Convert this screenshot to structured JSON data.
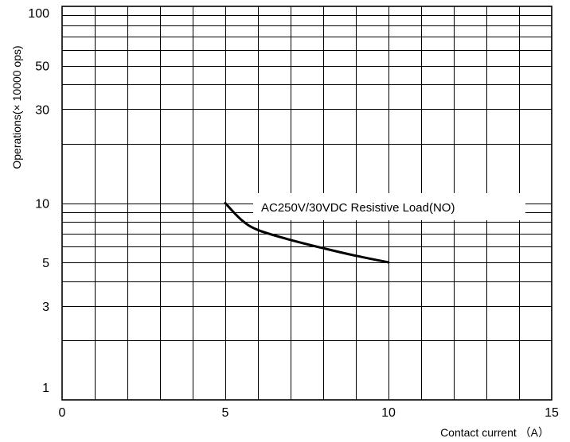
{
  "chart_data": {
    "type": "line",
    "title": "",
    "xlabel": "Contact current （A）",
    "ylabel": "Operations(× 10000 ops)",
    "xlim": [
      0,
      15
    ],
    "ylim": [
      1,
      100
    ],
    "y_scale": "log",
    "grid": true,
    "x_ticks": [
      {
        "value": 0,
        "label": "0"
      },
      {
        "value": 5,
        "label": "5"
      },
      {
        "value": 10,
        "label": "10"
      },
      {
        "value": 15,
        "label": "15"
      }
    ],
    "y_ticks": [
      {
        "value": 1,
        "label": "1"
      },
      {
        "value": 3,
        "label": "3"
      },
      {
        "value": 5,
        "label": "5"
      },
      {
        "value": 10,
        "label": "10"
      },
      {
        "value": 30,
        "label": "30"
      },
      {
        "value": 50,
        "label": "50"
      },
      {
        "value": 100,
        "label": "100"
      }
    ],
    "annotation": "AC250V/30VDC  Resistive Load(NO)",
    "series": [
      {
        "x": [
          5.0,
          5.5,
          6.0,
          7.0,
          8.0,
          9.0,
          10.0
        ],
        "y": [
          10.0,
          8.2,
          7.3,
          6.5,
          5.9,
          5.4,
          5.0
        ],
        "color": "#000000"
      }
    ]
  }
}
